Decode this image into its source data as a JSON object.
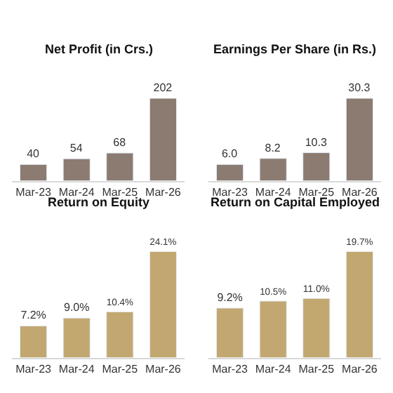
{
  "chart_data": [
    {
      "type": "bar",
      "title": "Net Profit (in Crs.)",
      "categories": [
        "Mar-23",
        "Mar-24",
        "Mar-25",
        "Mar-26"
      ],
      "values": [
        40,
        54,
        68,
        202
      ],
      "value_labels": [
        "40",
        "54",
        "68",
        "202"
      ],
      "color": "#8c7b71"
    },
    {
      "type": "bar",
      "title": "Earnings Per Share (in Rs.)",
      "categories": [
        "Mar-23",
        "Mar-24",
        "Mar-25",
        "Mar-26"
      ],
      "values": [
        6.0,
        8.2,
        10.3,
        30.3
      ],
      "value_labels": [
        "6.0",
        "8.2",
        "10.3",
        "30.3"
      ],
      "color": "#8c7b71"
    },
    {
      "type": "bar",
      "title": "Return on Equity",
      "categories": [
        "Mar-23",
        "Mar-24",
        "Mar-25",
        "Mar-26"
      ],
      "values": [
        7.2,
        9.0,
        10.4,
        24.1
      ],
      "value_labels": [
        "7.2%",
        "9.0%",
        "10.4%",
        "24.1%"
      ],
      "color": "#c2a870"
    },
    {
      "type": "bar",
      "title": "Return on Capital Employed",
      "categories": [
        "Mar-23",
        "Mar-24",
        "Mar-25",
        "Mar-26"
      ],
      "values": [
        9.2,
        10.5,
        11.0,
        19.7
      ],
      "value_labels": [
        "9.2%",
        "10.5%",
        "11.0%",
        "19.7%"
      ],
      "color": "#c2a870"
    }
  ]
}
